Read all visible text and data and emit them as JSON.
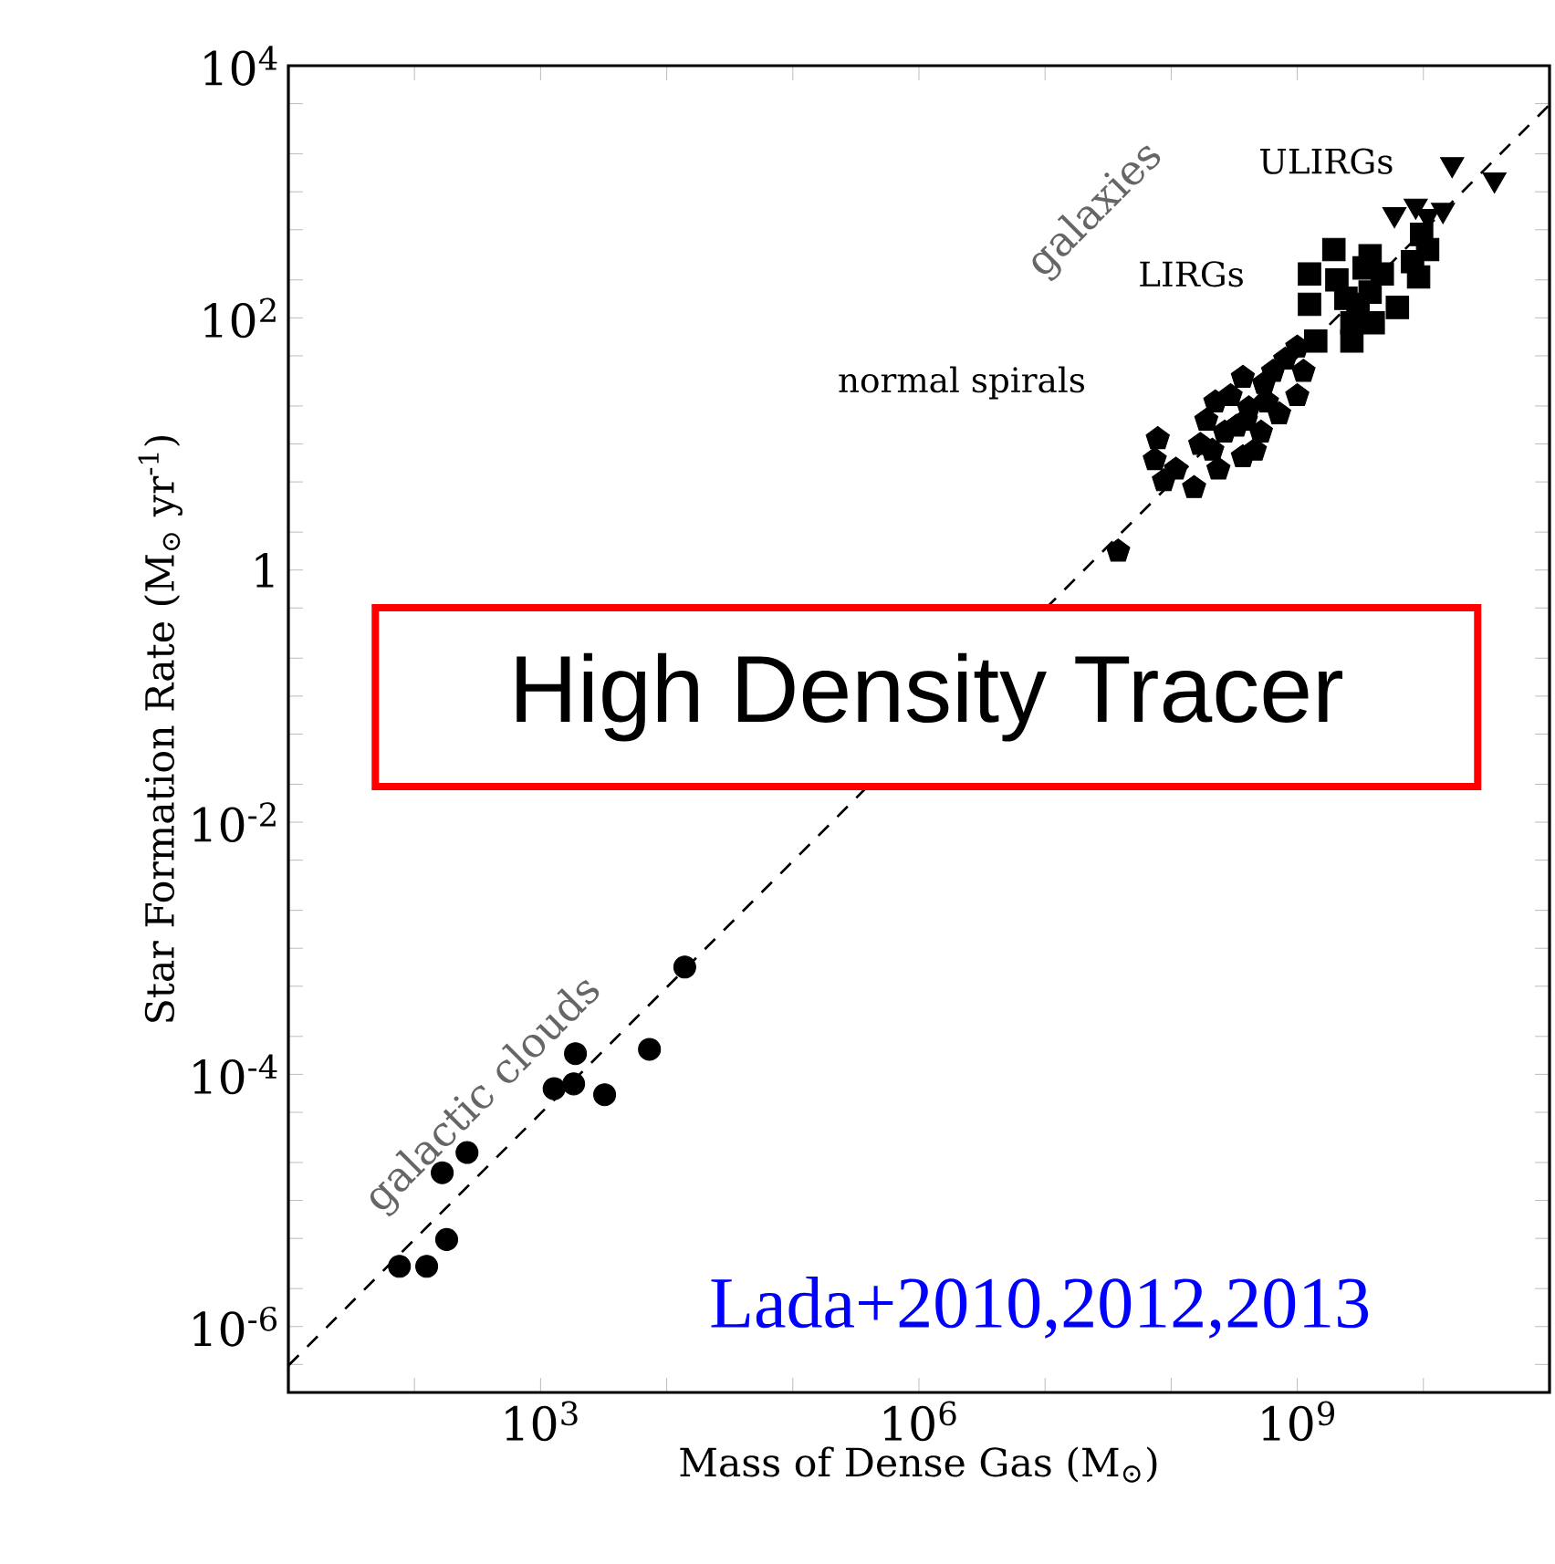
{
  "chart_data": {
    "type": "scatter",
    "xlabel": "Mass of Dense Gas (M$_{⊙}$)",
    "ylabel": "Star Formation Rate (M$_{⊙}$ yr$^{-1}$)",
    "log": "xy",
    "xlim": [
      10,
      100000000000
    ],
    "ylim": [
      3e-07,
      10000
    ],
    "xticks": [
      {
        "value": 10,
        "label": null
      },
      {
        "value": 100,
        "label": null
      },
      {
        "value": 1000,
        "label": "10$^{3}$"
      },
      {
        "value": 10000,
        "label": null
      },
      {
        "value": 100000,
        "label": null
      },
      {
        "value": 1000000,
        "label": "10$^{6}$"
      },
      {
        "value": 10000000,
        "label": null
      },
      {
        "value": 100000000,
        "label": null
      },
      {
        "value": 1000000000,
        "label": "10$^{9}$"
      },
      {
        "value": 10000000000,
        "label": null
      }
    ],
    "yticks": [
      {
        "value": 5e-07,
        "label": null
      },
      {
        "value": 1e-06,
        "label": "10$^{-6}$"
      },
      {
        "value": 2e-06,
        "label": null
      },
      {
        "value": 5e-06,
        "label": null
      },
      {
        "value": 1e-05,
        "label": null
      },
      {
        "value": 2e-05,
        "label": null
      },
      {
        "value": 5e-05,
        "label": null
      },
      {
        "value": 0.0001,
        "label": "10$^{-4}$"
      },
      {
        "value": 0.0002,
        "label": null
      },
      {
        "value": 0.0005,
        "label": null
      },
      {
        "value": 0.001,
        "label": null
      },
      {
        "value": 0.002,
        "label": null
      },
      {
        "value": 0.005,
        "label": null
      },
      {
        "value": 0.01,
        "label": "10$^{-2}$"
      },
      {
        "value": 0.02,
        "label": null
      },
      {
        "value": 0.05,
        "label": null
      },
      {
        "value": 0.1,
        "label": null
      },
      {
        "value": 0.2,
        "label": null
      },
      {
        "value": 0.5,
        "label": null
      },
      {
        "value": 1,
        "label": "1"
      },
      {
        "value": 2,
        "label": null
      },
      {
        "value": 5,
        "label": null
      },
      {
        "value": 10,
        "label": null
      },
      {
        "value": 20,
        "label": null
      },
      {
        "value": 50,
        "label": null
      },
      {
        "value": 100,
        "label": "10$^{2}$"
      },
      {
        "value": 200,
        "label": null
      },
      {
        "value": 500,
        "label": null
      },
      {
        "value": 1000,
        "label": null
      },
      {
        "value": 2000,
        "label": null
      },
      {
        "value": 5000,
        "label": null
      },
      {
        "value": 10000,
        "label": "10$^{4}$"
      }
    ],
    "series": [
      {
        "color": "#000000",
        "marker": "circle",
        "x": [
          76,
          125,
          180,
          166,
          261,
          1280,
          1830,
          1890,
          3220,
          7300,
          13900
        ],
        "values": [
          3e-06,
          3e-06,
          4.9e-06,
          1.66e-05,
          2.4e-05,
          7.7e-05,
          8.4e-05,
          0.000146,
          6.9e-05,
          0.000158,
          0.00071
        ]
      },
      {
        "color": "#000000",
        "x": [
          38000000,
          78300000,
          74100000,
          87500000,
          109000000,
          152000000,
          170000000,
          190000000,
          212000000,
          224000000,
          237000000,
          265000000,
          296000000,
          330000000,
          370000000,
          370000000,
          391000000,
          413000000,
          461000000,
          515000000,
          545000000,
          575000000,
          643000000,
          718000000,
          802000000,
          1000000000,
          1000000000,
          1120000000
        ],
        "values": [
          1.41,
          11.0,
          7.5,
          5.1,
          6.3,
          4.5,
          9.9,
          15.4,
          8.9,
          21.5,
          6.3,
          12.4,
          24.1,
          13.8,
          33.7,
          7.9,
          15.4,
          19.3,
          8.9,
          12.4,
          30.1,
          21.5,
          37.6,
          17.3,
          46.9,
          24.1,
          58.6,
          37.6
        ]
      },
      {
        "color": "#000000",
        "marker": "square",
        "x": [
          1250000000,
          1250000000,
          1400000000,
          1950000000,
          2060000000,
          2430000000,
          2710000000,
          2710000000,
          3030000000,
          3390000000,
          3780000000,
          3780000000,
          4000000000,
          4720000000,
          6220000000,
          8200000000,
          9160000000,
          10800000000,
          9680000000
        ],
        "values": [
          223,
          128,
          65.5,
          348,
          200,
          143,
          91.5,
          65.5,
          128,
          249,
          311,
          160,
          91.5,
          223,
          121,
          279,
          211,
          348,
          459
        ]
      },
      {
        "color": "#000000",
        "marker": "triangle-down",
        "x": [
          16900000000,
          36600000000,
          5890000000,
          8690000000,
          14300000000,
          10800000000
        ],
        "values": [
          1650,
          1250,
          662,
          774,
          716,
          641
        ]
      },
      {
        "type": "line",
        "color": "#000000",
        "marker": "none",
        "line_style": "dashed",
        "x": [
          10,
          100000000000
        ],
        "values": [
          4.9e-07,
          4900
        ]
      }
    ],
    "annotations": [
      "galactic clouds",
      "galaxies",
      "normal spirals",
      "LIRGs",
      "ULIRGs",
      "High Density Tracer",
      "Lada+2010,2012,2013"
    ]
  }
}
